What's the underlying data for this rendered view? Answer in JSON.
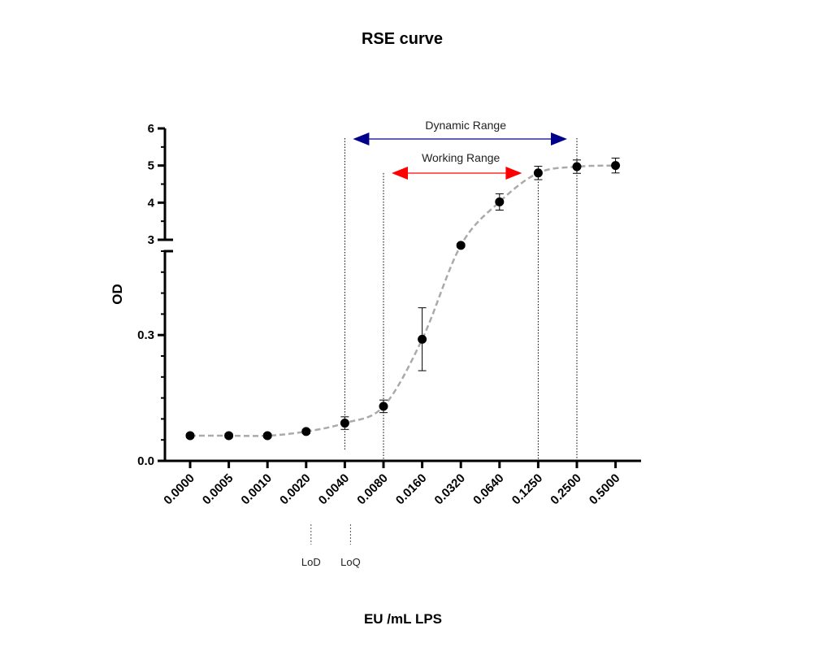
{
  "chart_data": {
    "type": "line",
    "title": "RSE curve",
    "xlabel": "EU /mL LPS",
    "ylabel": "OD",
    "categories": [
      "0.0000",
      "0.0005",
      "0.0010",
      "0.0020",
      "0.0040",
      "0.0080",
      "0.0160",
      "0.0320",
      "0.0640",
      "0.1250",
      "0.2500",
      "0.5000"
    ],
    "series": [
      {
        "values": [
          0.06,
          0.06,
          0.06,
          0.07,
          0.09,
          0.13,
          0.29,
          2.85,
          4.02,
          4.8,
          4.97,
          5.0
        ],
        "errors": [
          0.005,
          0.005,
          0.005,
          0.005,
          0.015,
          0.015,
          0.075,
          0.05,
          0.22,
          0.18,
          0.18,
          0.2
        ],
        "color": "#000000",
        "line_color": "#aaaaaa",
        "line_style": "dashed"
      }
    ],
    "y_axis": {
      "segmented": true,
      "lower_range": [
        0.0,
        0.5
      ],
      "upper_range": [
        3,
        6
      ],
      "tick_labels": [
        "0.0",
        "0.3",
        "3",
        "4",
        "5",
        "6"
      ]
    },
    "annotations": {
      "dynamic_range": {
        "label": "Dynamic Range",
        "from": "0.0040",
        "to": "0.2500",
        "color": "#00008b"
      },
      "working_range": {
        "label": "Working Range",
        "from": "0.0080",
        "to": "0.1250",
        "color": "#ff0000"
      },
      "lod": {
        "label": "LoD",
        "at": "0.0020"
      },
      "loq": {
        "label": "LoQ",
        "at": "0.0040"
      }
    },
    "grid": false,
    "legend": "none"
  }
}
